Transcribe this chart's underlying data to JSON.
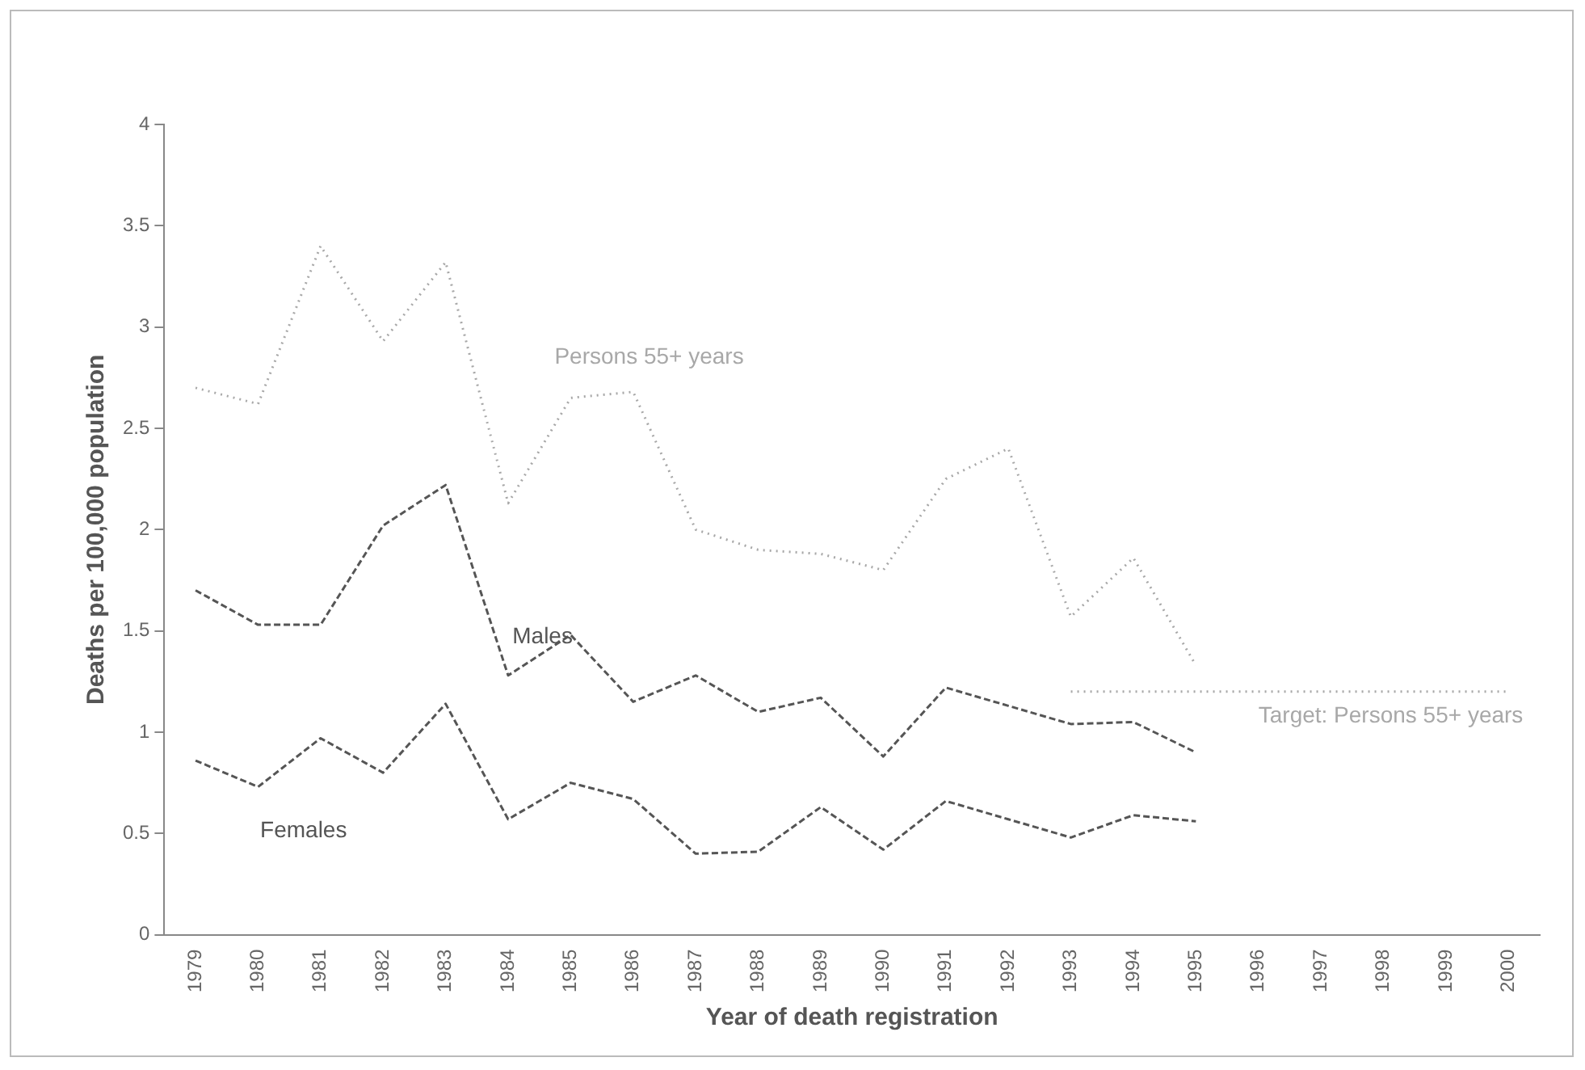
{
  "chart_data": {
    "type": "line",
    "xlabel": "Year of death registration",
    "ylabel": "Deaths per 100,000 population",
    "categories": [
      "1979",
      "1980",
      "1981",
      "1982",
      "1983",
      "1984",
      "1985",
      "1986",
      "1987",
      "1988",
      "1989",
      "1990",
      "1991",
      "1992",
      "1993",
      "1994",
      "1995",
      "1996",
      "1997",
      "1998",
      "1999",
      "2000"
    ],
    "series": [
      {
        "name": "Persons 55+ years",
        "color": "#a8a8a8",
        "line_style": "dotted",
        "values": [
          2.7,
          2.62,
          3.4,
          2.93,
          3.32,
          2.13,
          2.65,
          2.68,
          2.0,
          1.9,
          1.88,
          1.8,
          2.25,
          2.4,
          1.57,
          1.86,
          1.33,
          null,
          null,
          null,
          null,
          null
        ]
      },
      {
        "name": "Males",
        "color": "#555555",
        "line_style": "dashed",
        "values": [
          1.7,
          1.53,
          1.53,
          2.02,
          2.22,
          1.28,
          1.48,
          1.15,
          1.28,
          1.1,
          1.17,
          0.88,
          1.22,
          1.13,
          1.04,
          1.05,
          0.9,
          null,
          null,
          null,
          null,
          null
        ]
      },
      {
        "name": "Females",
        "color": "#555555",
        "line_style": "dashed",
        "values": [
          0.86,
          0.73,
          0.97,
          0.8,
          1.14,
          0.57,
          0.75,
          0.67,
          0.4,
          0.41,
          0.63,
          0.42,
          0.66,
          0.57,
          0.48,
          0.59,
          0.56,
          null,
          null,
          null,
          null,
          null
        ]
      },
      {
        "name": "Target: Persons 55+ years",
        "color": "#a8a8a8",
        "line_style": "dotted",
        "values": [
          null,
          null,
          null,
          null,
          null,
          null,
          null,
          null,
          null,
          null,
          null,
          null,
          null,
          null,
          1.2,
          1.2,
          1.2,
          1.2,
          1.2,
          1.2,
          1.2,
          1.2
        ]
      }
    ],
    "ylim": [
      0,
      4
    ],
    "yticks": [
      0,
      0.5,
      1,
      1.5,
      2,
      2.5,
      3,
      3.5,
      4
    ],
    "grid": false,
    "legend": false,
    "marker": "none"
  }
}
